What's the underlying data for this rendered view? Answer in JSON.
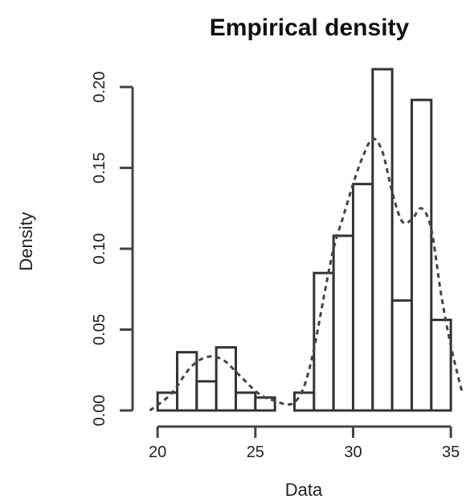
{
  "chart_data": {
    "type": "bar",
    "title": "Empirical density",
    "xlabel": "Data",
    "ylabel": "Density",
    "xlim": [
      19.5,
      35.2
    ],
    "ylim": [
      0,
      0.21
    ],
    "x_ticks": [
      20,
      25,
      30,
      35
    ],
    "x_tick_labels": [
      "20",
      "25",
      "30",
      "35"
    ],
    "y_ticks": [
      0.0,
      0.05,
      0.1,
      0.15,
      0.2
    ],
    "y_tick_labels": [
      "0.00",
      "0.05",
      "0.10",
      "0.15",
      "0.20"
    ],
    "bins": [
      {
        "x0": 20,
        "x1": 21,
        "density": 0.011
      },
      {
        "x0": 21,
        "x1": 22,
        "density": 0.036
      },
      {
        "x0": 22,
        "x1": 23,
        "density": 0.018
      },
      {
        "x0": 23,
        "x1": 24,
        "density": 0.039
      },
      {
        "x0": 24,
        "x1": 25,
        "density": 0.011
      },
      {
        "x0": 25,
        "x1": 26,
        "density": 0.008
      },
      {
        "x0": 26,
        "x1": 27,
        "density": 0.0
      },
      {
        "x0": 27,
        "x1": 28,
        "density": 0.011
      },
      {
        "x0": 28,
        "x1": 29,
        "density": 0.085
      },
      {
        "x0": 29,
        "x1": 30,
        "density": 0.108
      },
      {
        "x0": 30,
        "x1": 31,
        "density": 0.14
      },
      {
        "x0": 31,
        "x1": 32,
        "density": 0.211
      },
      {
        "x0": 32,
        "x1": 33,
        "density": 0.068
      },
      {
        "x0": 33,
        "x1": 34,
        "density": 0.192
      },
      {
        "x0": 34,
        "x1": 35,
        "density": 0.056
      }
    ],
    "density_curve": {
      "x": [
        19.6,
        20.5,
        21.0,
        21.5,
        22.0,
        22.5,
        23.0,
        23.5,
        24.0,
        24.5,
        25.0,
        25.5,
        26.0,
        26.5,
        27.0,
        27.5,
        28.0,
        28.5,
        29.0,
        29.5,
        30.0,
        30.5,
        31.0,
        31.5,
        32.0,
        32.5,
        33.0,
        33.5,
        34.0,
        34.5,
        35.0,
        35.6
      ],
      "y": [
        0.0,
        0.008,
        0.015,
        0.024,
        0.03,
        0.033,
        0.033,
        0.03,
        0.024,
        0.018,
        0.012,
        0.008,
        0.006,
        0.004,
        0.005,
        0.015,
        0.038,
        0.07,
        0.1,
        0.12,
        0.14,
        0.157,
        0.168,
        0.16,
        0.135,
        0.117,
        0.118,
        0.125,
        0.112,
        0.072,
        0.04,
        0.01
      ]
    }
  }
}
